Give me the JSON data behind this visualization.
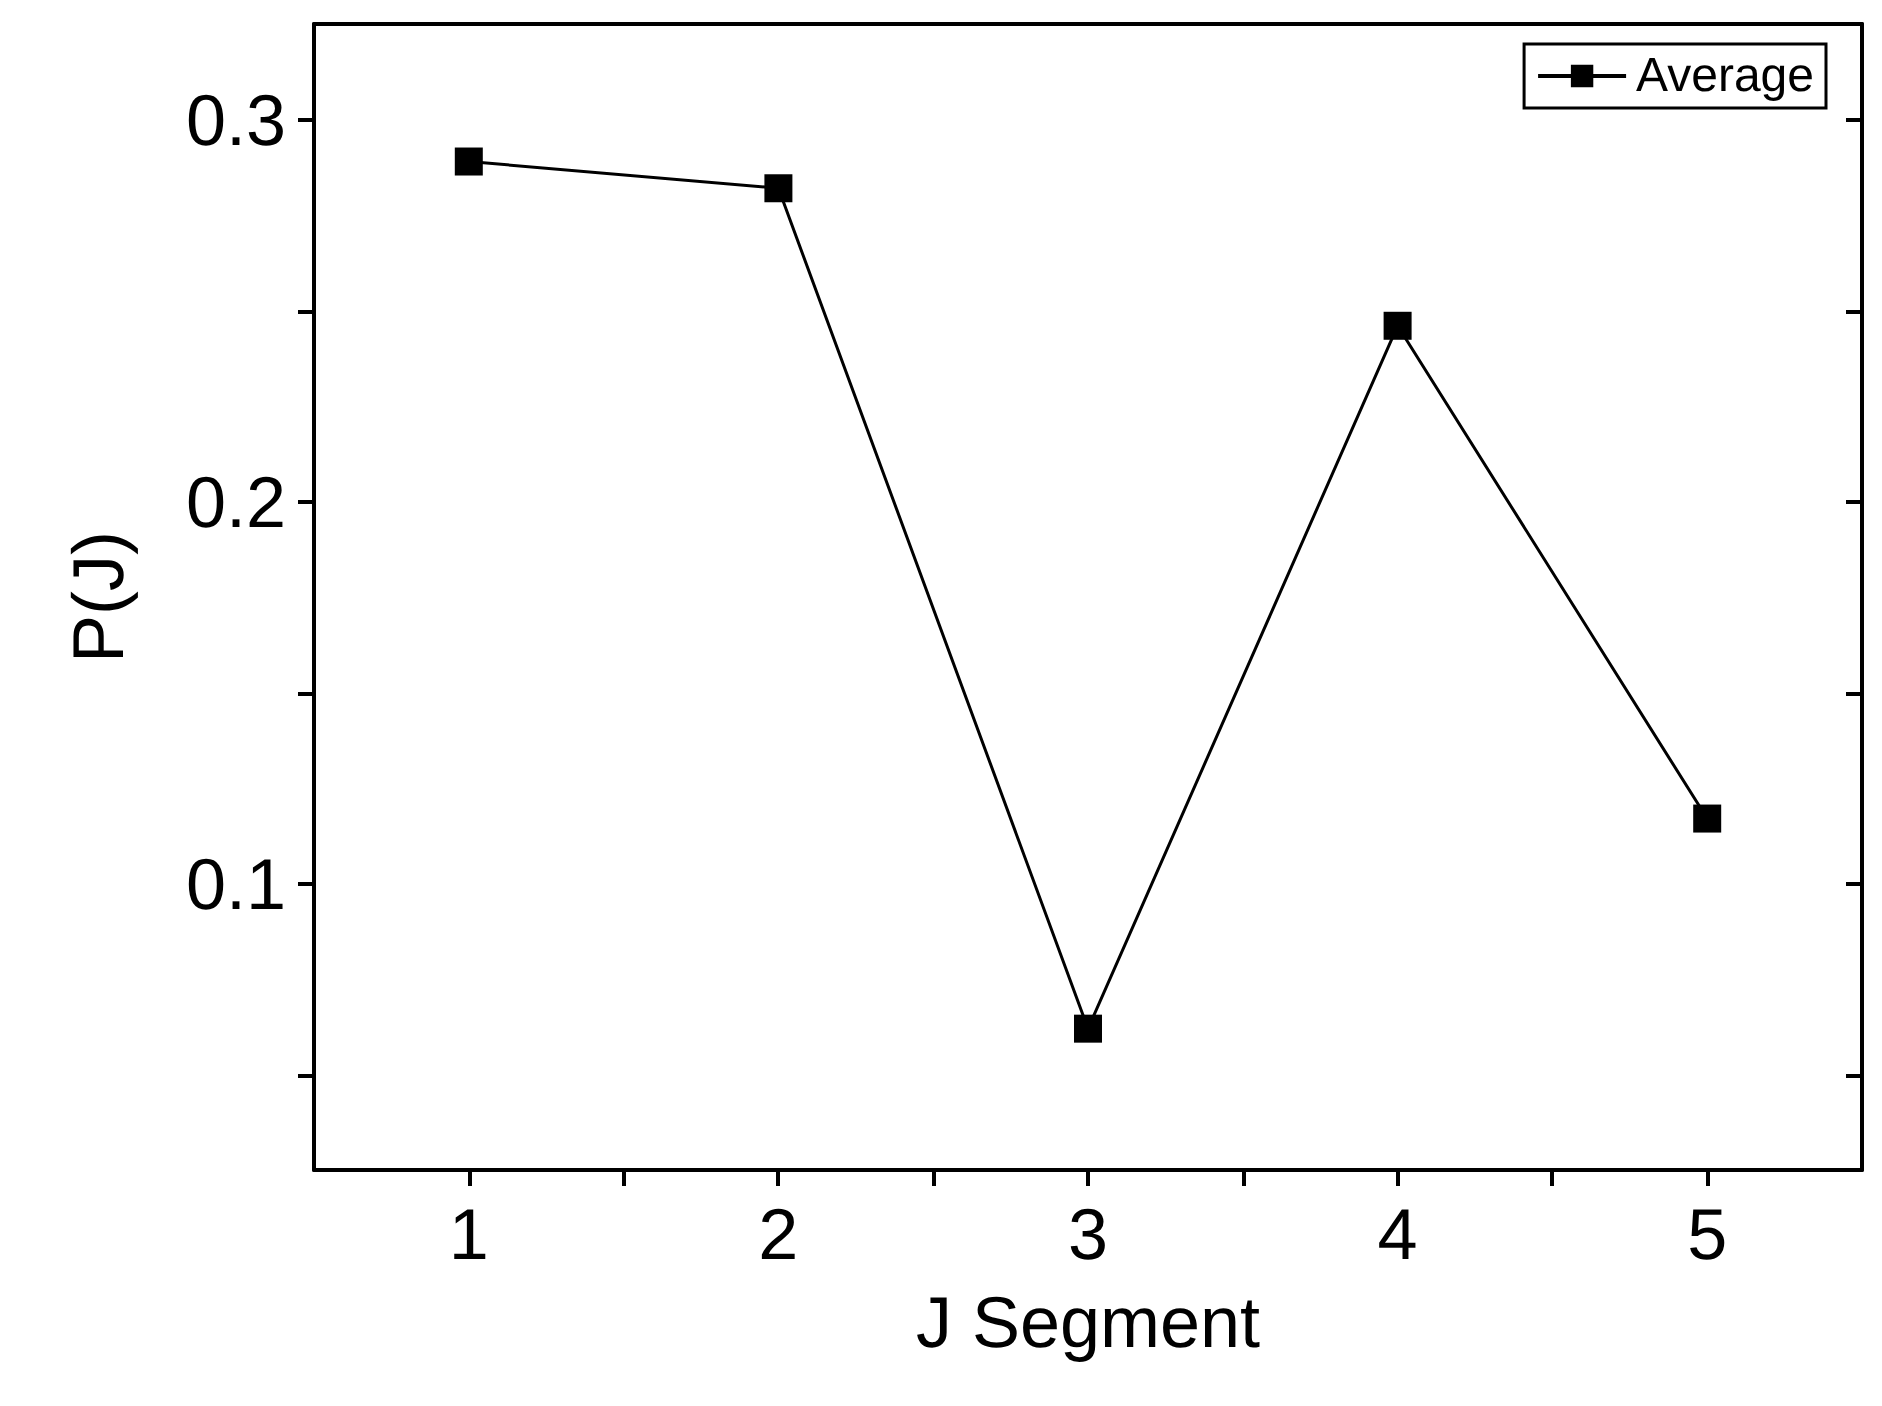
{
  "chart_data": {
    "type": "line",
    "xlabel": "J Segment",
    "ylabel": "P(J)",
    "x": [
      1,
      2,
      3,
      4,
      5
    ],
    "series": [
      {
        "name": "Average",
        "color": "#000000",
        "values": [
          0.289,
          0.282,
          0.062,
          0.246,
          0.117
        ]
      }
    ],
    "xlim": [
      0.5,
      5.5
    ],
    "xticks": [
      1,
      {
        "value": 1.5,
        "label": null
      },
      2,
      {
        "value": 2.5,
        "label": null
      },
      3,
      {
        "value": 3.5,
        "label": null
      },
      4,
      {
        "value": 4.5,
        "label": null
      },
      5
    ],
    "ylim": [
      0.025,
      0.325
    ],
    "yticks": [
      {
        "value": 0.05,
        "label": null
      },
      0.1,
      {
        "value": 0.15,
        "label": null
      },
      0.2,
      {
        "value": 0.25,
        "label": null
      },
      0.3
    ],
    "grid": false,
    "legend": "top right",
    "marker": "square",
    "line_style": "solid"
  }
}
